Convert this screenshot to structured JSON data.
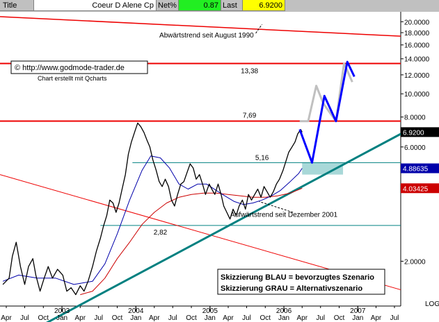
{
  "header": {
    "title_label": "Title",
    "title_value": "Coeur D Alene Cp",
    "netpct_label": "Net%",
    "netpct_value": "0.87",
    "last_label": "Last",
    "last_value": "6.9200"
  },
  "colors": {
    "price": "#000000",
    "ma_short": "#0000aa",
    "ma_long": "#cc0000",
    "trend_down": "#ee0000",
    "trend_up": "#008080",
    "scenario_blue": "#0000ff",
    "scenario_grey": "#c0c0c0",
    "support_zone": "#a8d8d8",
    "badge_last": "#000000",
    "badge_ma_short": "#0000aa",
    "badge_ma_long": "#cc0000"
  },
  "chart_data": {
    "type": "line",
    "scale": "log",
    "ylim": [
      1.3,
      22
    ],
    "x_range": [
      "2002-03-01",
      "2007-08-01"
    ],
    "y_ticks": [
      2,
      6,
      8,
      10,
      12,
      14,
      16,
      18,
      20
    ],
    "y_tick_labels": [
      "2.0000",
      "6.0000",
      "8.0000",
      "10.0000",
      "12.0000",
      "14.0000",
      "16.0000",
      "18.0000",
      "20.0000"
    ],
    "y_axis_footer": "LOG",
    "x_month_ticks": [
      {
        "date": "2002-04-01",
        "label": "Apr"
      },
      {
        "date": "2002-07-01",
        "label": "Jul"
      },
      {
        "date": "2002-10-01",
        "label": "Oct"
      },
      {
        "date": "2003-01-01",
        "label": "Jan"
      },
      {
        "date": "2003-04-01",
        "label": "Apr"
      },
      {
        "date": "2003-07-01",
        "label": "Jul"
      },
      {
        "date": "2003-10-01",
        "label": "Oct"
      },
      {
        "date": "2004-01-01",
        "label": "Jan"
      },
      {
        "date": "2004-04-01",
        "label": "Apr"
      },
      {
        "date": "2004-07-01",
        "label": "Jul"
      },
      {
        "date": "2004-10-01",
        "label": "Oct"
      },
      {
        "date": "2005-01-01",
        "label": "Jan"
      },
      {
        "date": "2005-04-01",
        "label": "Apr"
      },
      {
        "date": "2005-07-01",
        "label": "Jul"
      },
      {
        "date": "2005-10-01",
        "label": "Oct"
      },
      {
        "date": "2006-01-01",
        "label": "Jan"
      },
      {
        "date": "2006-04-01",
        "label": "Apr"
      },
      {
        "date": "2006-07-01",
        "label": "Jul"
      },
      {
        "date": "2006-10-01",
        "label": "Oct"
      },
      {
        "date": "2007-01-01",
        "label": "Jan"
      },
      {
        "date": "2007-04-01",
        "label": "Apr"
      },
      {
        "date": "2007-07-01",
        "label": "Jul"
      }
    ],
    "x_year_ticks": [
      {
        "date": "2003-01-01",
        "label": "2003"
      },
      {
        "date": "2004-01-01",
        "label": "2004"
      },
      {
        "date": "2005-01-01",
        "label": "2005"
      },
      {
        "date": "2006-01-01",
        "label": "2006"
      },
      {
        "date": "2007-01-01",
        "label": "2007"
      }
    ],
    "series": [
      {
        "id": "price",
        "data": [
          [
            "2002-03-15",
            1.6
          ],
          [
            "2002-04-15",
            1.7
          ],
          [
            "2002-05-01",
            2.1
          ],
          [
            "2002-05-20",
            2.4
          ],
          [
            "2002-06-10",
            1.9
          ],
          [
            "2002-07-01",
            1.6
          ],
          [
            "2002-07-20",
            1.9
          ],
          [
            "2002-08-10",
            2.05
          ],
          [
            "2002-08-25",
            1.75
          ],
          [
            "2002-09-15",
            1.5
          ],
          [
            "2002-10-05",
            1.7
          ],
          [
            "2002-10-25",
            1.9
          ],
          [
            "2002-11-15",
            1.7
          ],
          [
            "2002-12-10",
            1.85
          ],
          [
            "2003-01-05",
            1.75
          ],
          [
            "2003-01-25",
            1.5
          ],
          [
            "2003-02-15",
            1.55
          ],
          [
            "2003-03-10",
            1.45
          ],
          [
            "2003-04-01",
            1.58
          ],
          [
            "2003-04-20",
            1.5
          ],
          [
            "2003-05-10",
            1.65
          ],
          [
            "2003-06-01",
            1.9
          ],
          [
            "2003-06-20",
            2.2
          ],
          [
            "2003-07-10",
            2.5
          ],
          [
            "2003-07-25",
            2.8
          ],
          [
            "2003-08-10",
            3.1
          ],
          [
            "2003-08-25",
            3.6
          ],
          [
            "2003-09-10",
            3.5
          ],
          [
            "2003-09-25",
            3.2
          ],
          [
            "2003-10-10",
            3.5
          ],
          [
            "2003-10-25",
            4.0
          ],
          [
            "2003-11-10",
            4.6
          ],
          [
            "2003-11-25",
            5.6
          ],
          [
            "2003-12-10",
            6.3
          ],
          [
            "2003-12-28",
            7.0
          ],
          [
            "2004-01-10",
            7.55
          ],
          [
            "2004-01-25",
            7.3
          ],
          [
            "2004-02-10",
            6.9
          ],
          [
            "2004-02-25",
            6.4
          ],
          [
            "2004-03-10",
            6.0
          ],
          [
            "2004-03-25",
            5.3
          ],
          [
            "2004-04-10",
            4.8
          ],
          [
            "2004-04-25",
            4.3
          ],
          [
            "2004-05-10",
            4.1
          ],
          [
            "2004-05-25",
            4.4
          ],
          [
            "2004-06-10",
            4.1
          ],
          [
            "2004-06-25",
            3.6
          ],
          [
            "2004-07-10",
            3.4
          ],
          [
            "2004-07-25",
            3.8
          ],
          [
            "2004-08-10",
            4.2
          ],
          [
            "2004-08-25",
            4.3
          ],
          [
            "2004-09-10",
            4.7
          ],
          [
            "2004-09-25",
            5.1
          ],
          [
            "2004-10-10",
            4.9
          ],
          [
            "2004-10-25",
            4.4
          ],
          [
            "2004-11-10",
            4.6
          ],
          [
            "2004-11-25",
            4.2
          ],
          [
            "2004-12-10",
            3.8
          ],
          [
            "2004-12-28",
            4.2
          ],
          [
            "2005-01-10",
            4.0
          ],
          [
            "2005-01-25",
            3.8
          ],
          [
            "2005-02-10",
            4.2
          ],
          [
            "2005-02-25",
            3.8
          ],
          [
            "2005-03-10",
            3.4
          ],
          [
            "2005-03-25",
            3.2
          ],
          [
            "2005-04-10",
            3.0
          ],
          [
            "2005-04-25",
            3.3
          ],
          [
            "2005-05-10",
            3.1
          ],
          [
            "2005-05-25",
            3.4
          ],
          [
            "2005-06-10",
            3.6
          ],
          [
            "2005-06-25",
            3.3
          ],
          [
            "2005-07-10",
            3.8
          ],
          [
            "2005-07-25",
            3.6
          ],
          [
            "2005-08-10",
            3.8
          ],
          [
            "2005-08-25",
            4.0
          ],
          [
            "2005-09-10",
            3.7
          ],
          [
            "2005-09-25",
            4.1
          ],
          [
            "2005-10-10",
            3.9
          ],
          [
            "2005-10-25",
            3.7
          ],
          [
            "2005-11-10",
            3.9
          ],
          [
            "2005-11-25",
            4.2
          ],
          [
            "2005-12-10",
            4.4
          ],
          [
            "2005-12-28",
            4.8
          ],
          [
            "2006-01-10",
            5.2
          ],
          [
            "2006-01-25",
            5.7
          ],
          [
            "2006-02-10",
            6.0
          ],
          [
            "2006-02-25",
            6.3
          ],
          [
            "2006-03-10",
            6.8
          ],
          [
            "2006-03-25",
            7.1
          ],
          [
            "2006-04-01",
            6.92
          ]
        ]
      },
      {
        "id": "ma_short",
        "data": [
          [
            "2002-03-15",
            1.65
          ],
          [
            "2002-06-01",
            1.75
          ],
          [
            "2002-09-01",
            1.7
          ],
          [
            "2002-12-01",
            1.7
          ],
          [
            "2003-03-01",
            1.6
          ],
          [
            "2003-06-01",
            1.65
          ],
          [
            "2003-08-01",
            1.95
          ],
          [
            "2003-10-01",
            2.6
          ],
          [
            "2003-12-01",
            3.6
          ],
          [
            "2004-02-01",
            4.8
          ],
          [
            "2004-03-15",
            5.5
          ],
          [
            "2004-05-01",
            5.4
          ],
          [
            "2004-06-15",
            4.9
          ],
          [
            "2004-08-01",
            4.2
          ],
          [
            "2004-09-15",
            4.0
          ],
          [
            "2004-11-01",
            4.2
          ],
          [
            "2004-12-15",
            4.2
          ],
          [
            "2005-02-01",
            3.95
          ],
          [
            "2005-03-15",
            3.75
          ],
          [
            "2005-05-01",
            3.55
          ],
          [
            "2005-06-15",
            3.45
          ],
          [
            "2005-08-01",
            3.5
          ],
          [
            "2005-09-15",
            3.6
          ],
          [
            "2005-11-01",
            3.75
          ],
          [
            "2005-12-15",
            3.95
          ],
          [
            "2006-02-01",
            4.3
          ],
          [
            "2006-03-15",
            4.65
          ],
          [
            "2006-04-01",
            4.88635
          ]
        ]
      },
      {
        "id": "ma_long",
        "data": [
          [
            "2003-04-01",
            1.45
          ],
          [
            "2003-06-01",
            1.5
          ],
          [
            "2003-08-01",
            1.7
          ],
          [
            "2003-10-01",
            2.05
          ],
          [
            "2003-12-01",
            2.4
          ],
          [
            "2004-02-01",
            2.85
          ],
          [
            "2004-04-01",
            3.2
          ],
          [
            "2004-06-01",
            3.5
          ],
          [
            "2004-08-01",
            3.7
          ],
          [
            "2004-10-01",
            3.8
          ],
          [
            "2004-12-01",
            3.85
          ],
          [
            "2005-02-01",
            3.85
          ],
          [
            "2005-04-01",
            3.8
          ],
          [
            "2005-06-01",
            3.75
          ],
          [
            "2005-08-01",
            3.7
          ],
          [
            "2005-10-01",
            3.7
          ],
          [
            "2005-12-01",
            3.75
          ],
          [
            "2006-02-01",
            3.85
          ],
          [
            "2006-04-01",
            4.03425
          ]
        ]
      },
      {
        "id": "scenario_grey",
        "data": [
          [
            "2006-03-20",
            7.69
          ],
          [
            "2006-05-01",
            7.69
          ],
          [
            "2006-06-10",
            10.8
          ],
          [
            "2006-07-15",
            9.1
          ],
          [
            "2006-09-15",
            7.69
          ],
          [
            "2006-10-25",
            13.38
          ],
          [
            "2006-12-05",
            11.2
          ]
        ]
      },
      {
        "id": "scenario_blue",
        "data": [
          [
            "2006-03-20",
            7.1
          ],
          [
            "2006-05-20",
            5.16
          ],
          [
            "2006-07-20",
            9.8
          ],
          [
            "2006-09-15",
            7.69
          ],
          [
            "2006-11-10",
            13.6
          ],
          [
            "2006-12-15",
            11.8
          ]
        ]
      }
    ],
    "lines": [
      {
        "id": "trend_down",
        "label": "Abwärtstrend seit August 1990",
        "from": [
          "2002-03-01",
          21.0
        ],
        "to": [
          "2007-08-01",
          17.4
        ]
      },
      {
        "id": "resistance_1338",
        "label": "13,38",
        "y": 13.38
      },
      {
        "id": "resistance_769",
        "label": "7,69",
        "y": 7.69
      },
      {
        "id": "support_516",
        "label": "5,16",
        "y": 5.16,
        "from": "2003-12-15"
      },
      {
        "id": "support_282",
        "label": "2,82",
        "y": 2.82,
        "from": "2003-07-10"
      },
      {
        "id": "trend_up",
        "label": "Aufwärtstrend seit Dezember 2001",
        "from": [
          "2002-09-15",
          1.07
        ],
        "to": [
          "2007-08-01",
          6.8
        ]
      },
      {
        "id": "trend_down_long",
        "label": "",
        "from": [
          "2002-03-01",
          4.6
        ],
        "to": [
          "2007-08-01",
          1.52
        ]
      }
    ],
    "support_zone": {
      "from": "2006-04-01",
      "to": "2006-10-20",
      "y_low": 4.6,
      "y_high": 5.16
    },
    "value_badges": [
      {
        "id": "last",
        "value": "6.9200",
        "y": 6.92
      },
      {
        "id": "ma_short",
        "value": "4.88635",
        "y": 4.88635
      },
      {
        "id": "ma_long",
        "value": "4.03425",
        "y": 4.03425
      }
    ],
    "annotations": {
      "copyright": "© http://www.godmode-trader.de",
      "created": "Chart erstellt mit Qcharts",
      "legend_blue": "Skizzierung BLAU = bevorzugtes Szenario",
      "legend_grey": "Skizzierung GRAU = Alternativszenario"
    }
  }
}
